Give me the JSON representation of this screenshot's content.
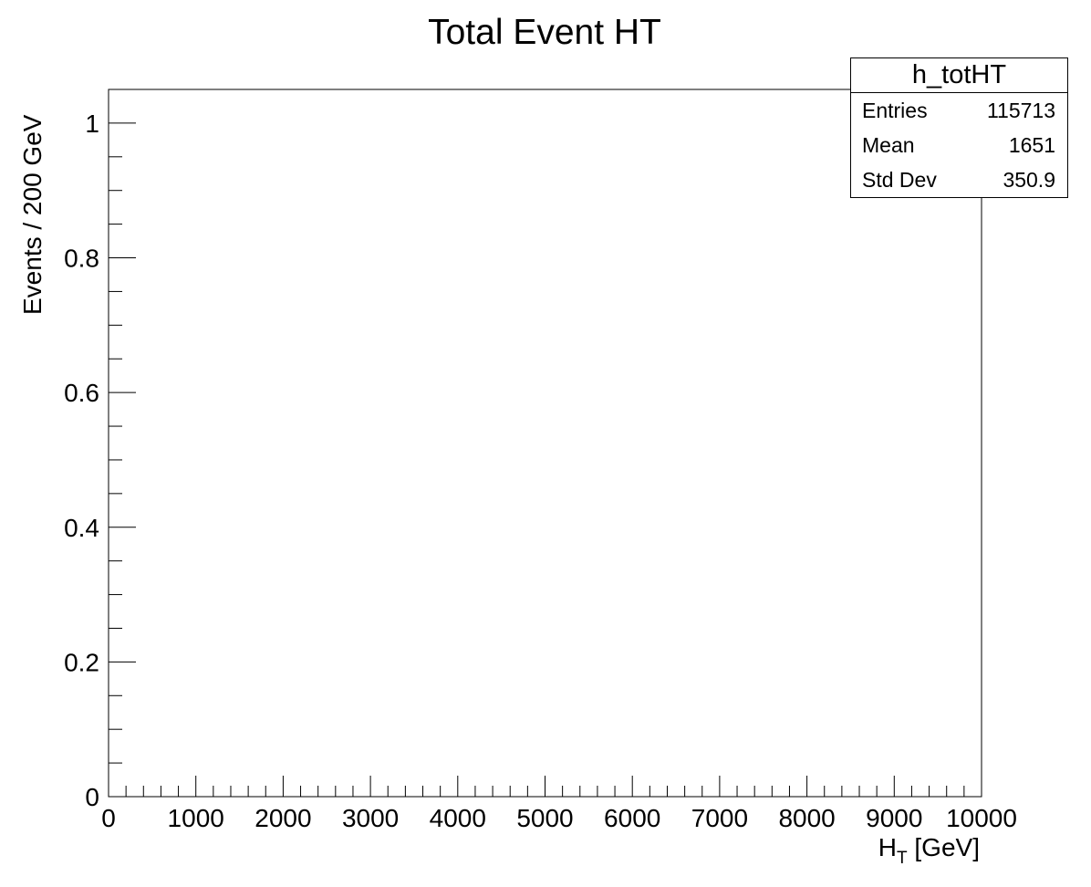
{
  "chart_data": {
    "type": "bar",
    "title": "Total Event HT",
    "xlabel": "H_T [GeV]",
    "xlabel_main": "H",
    "xlabel_sub": "T",
    "xlabel_unit": " [GeV]",
    "ylabel": "Events / 200 GeV",
    "xlim": [
      0,
      10000
    ],
    "ylim": [
      0,
      1.05
    ],
    "x_ticks": [
      0,
      1000,
      2000,
      3000,
      4000,
      5000,
      6000,
      7000,
      8000,
      9000,
      10000
    ],
    "x_tick_labels": [
      "0",
      "1000",
      "2000",
      "3000",
      "4000",
      "5000",
      "6000",
      "7000",
      "8000",
      "9000",
      "10000"
    ],
    "y_ticks": [
      0,
      0.2,
      0.4,
      0.6,
      0.8,
      1
    ],
    "y_tick_labels": [
      "0",
      "0.2",
      "0.4",
      "0.6",
      "0.8",
      "1"
    ],
    "series": [
      {
        "values": []
      }
    ],
    "grid": false,
    "legend": "none",
    "stats_box": {
      "name": "h_totHT",
      "rows": [
        {
          "label": "Entries",
          "value": "115713"
        },
        {
          "label": "Mean",
          "value": "1651"
        },
        {
          "label": "Std Dev",
          "value": "350.9"
        }
      ]
    }
  }
}
